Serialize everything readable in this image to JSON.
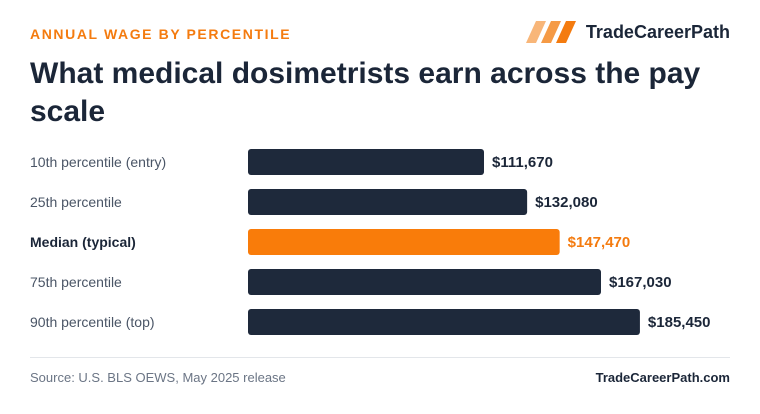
{
  "header": {
    "eyebrow": "ANNUAL WAGE BY PERCENTILE",
    "brand_name": "TradeCareerPath",
    "title": "What medical dosimetrists earn across the pay scale"
  },
  "footer": {
    "source": "Source: U.S. BLS OEWS, May 2025 release",
    "site": "TradeCareerPath.com"
  },
  "colors": {
    "bar_default": "#1e293b",
    "bar_highlight": "#f97c0a",
    "text_dark": "#1b2638",
    "text_muted": "#4a5566",
    "accent": "#f47b0f"
  },
  "icons": {
    "brand_logo": "slanted-stripes-logo-icon"
  },
  "chart_data": {
    "type": "bar",
    "orientation": "horizontal",
    "categories": [
      "10th percentile (entry)",
      "25th percentile",
      "Median (typical)",
      "75th percentile",
      "90th percentile (top)"
    ],
    "values": [
      111670,
      132080,
      147470,
      167030,
      185450
    ],
    "value_labels": [
      "$111,670",
      "$132,080",
      "$147,470",
      "$167,030",
      "$185,450"
    ],
    "highlight_index": 2,
    "title": "What medical dosimetrists earn across the pay scale",
    "xlabel": "",
    "ylabel": "",
    "xlim": [
      0,
      200000
    ],
    "grid": false,
    "legend": "none"
  }
}
